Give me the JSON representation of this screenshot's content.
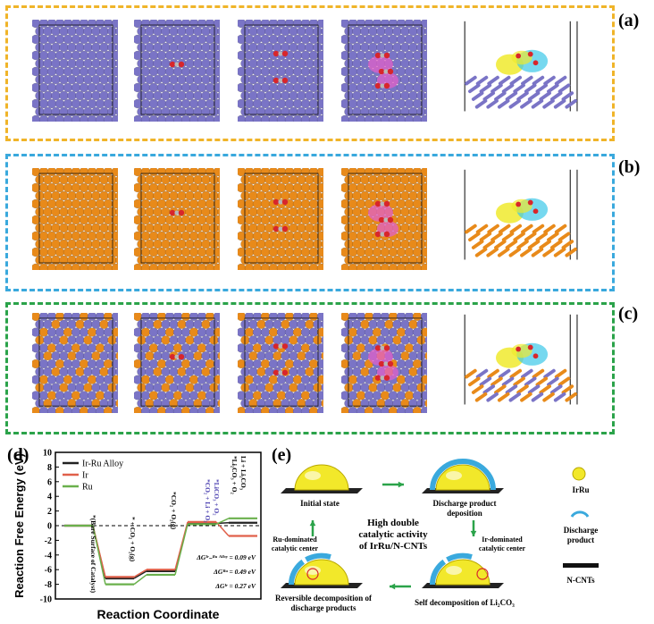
{
  "panels": [
    {
      "label": "(a)",
      "frame_color": "#f0b429",
      "metal_a": "#7a74c6",
      "metal_b": "#7a74c6"
    },
    {
      "label": "(b)",
      "frame_color": "#3aa9dd",
      "metal_a": "#e88a1a",
      "metal_b": "#e88a1a"
    },
    {
      "label": "(c)",
      "frame_color": "#2ba34a",
      "metal_a": "#e88a1a",
      "metal_b": "#7a74c6"
    }
  ],
  "colors": {
    "oxygen": "#d8262b",
    "carbon": "#b7b7b7",
    "charge_pink": "#e060c8",
    "charge_yellow": "#f0ea2e",
    "charge_cyan": "#3cc8e8"
  },
  "panel_d": {
    "label": "(d)",
    "ylabel": "Reaction Free Energy (eV)",
    "xlabel": "Reaction Coordinate",
    "legend": [
      "Ir-Ru Alloy",
      "Ir",
      "Ru"
    ],
    "annotations": {
      "a1": "*(Bare Surface of Catalyst)",
      "a2": "* + CO₂ + O₂(g)",
      "a3": "*CO₂ + O₂(g)",
      "a4": "*CO₂ + Li + O₂",
      "a5": "*LiCO₃ + O₂",
      "a6": "*Li₂CO₃ + O₂",
      "a7": "Li + Li₂CO₃"
    },
    "deltas": [
      "ΔGᴵʳ₋ᴿᵘ ᴬˡˡᵒʸ = 0.09 eV",
      "ΔGᴿᵘ = 0.49 eV",
      "ΔGᴵʳ = 0.27 eV"
    ]
  },
  "chart_data": {
    "type": "line",
    "title": "",
    "xlabel": "Reaction Coordinate",
    "ylabel": "Reaction Free Energy (eV)",
    "ylim": [
      -10,
      10
    ],
    "yticks": [
      -10,
      -8,
      -6,
      -4,
      -2,
      0,
      2,
      4,
      6,
      8,
      10
    ],
    "x": [
      0,
      1,
      2,
      3,
      4
    ],
    "series": [
      {
        "name": "Ir-Ru Alloy",
        "color": "#222222",
        "values": [
          0,
          -7.2,
          -6.2,
          0.3,
          0.4
        ]
      },
      {
        "name": "Ir",
        "color": "#e0604a",
        "values": [
          0,
          -7.0,
          -6.0,
          0.5,
          -1.4
        ]
      },
      {
        "name": "Ru",
        "color": "#6ab04c",
        "values": [
          0,
          -8.0,
          -6.7,
          0.2,
          1.0
        ]
      }
    ],
    "legend_position": "top-left"
  },
  "panel_e": {
    "label": "(e)",
    "states": {
      "initial": "Initial state",
      "discharge": "Discharge product",
      "discharge2": "deposition",
      "self": "Self decomposition of Li₂CO₃",
      "reversible": "Reversible decomposition of",
      "reversible2": "discharge products"
    },
    "centers": {
      "ru1": "Ru-dominated",
      "ru2": "catalytic center",
      "ir1": "Ir-dominated",
      "ir2": "catalytic center"
    },
    "middle": [
      "High double",
      "catalytic activity",
      "of IrRu/N-CNTs"
    ],
    "legend": [
      "IrRu",
      "Discharge",
      "product",
      "N-CNTs"
    ]
  }
}
